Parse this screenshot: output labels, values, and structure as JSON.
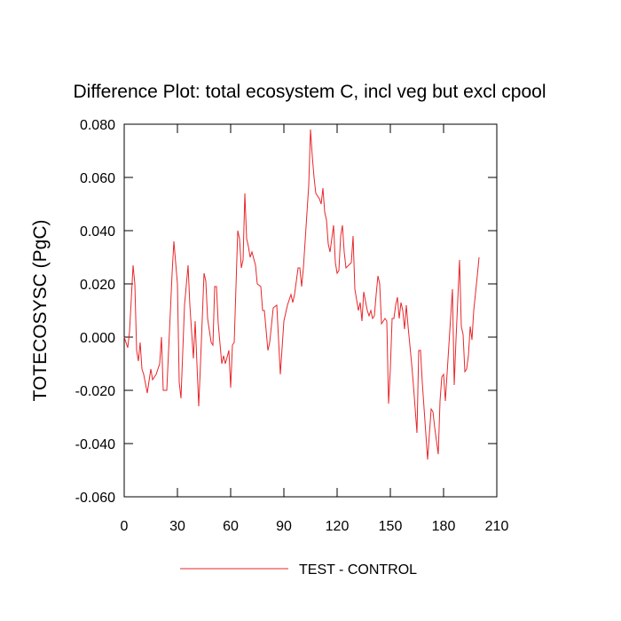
{
  "chart_data": {
    "type": "line",
    "title": "Difference Plot: total ecosystem C, incl veg but excl cpool",
    "y_label": "TOTECOSYSC  (PgC)",
    "x": [
      0,
      2,
      3,
      5,
      6,
      7,
      8,
      9,
      10,
      11,
      13,
      15,
      16,
      18,
      20,
      21,
      22,
      24,
      27,
      28,
      30,
      31,
      32,
      34,
      36,
      37,
      39,
      40,
      42,
      43,
      45,
      46,
      47,
      49,
      50,
      51,
      52,
      53,
      55,
      56,
      57,
      59,
      60,
      61,
      62,
      64,
      65,
      66,
      67,
      68,
      69,
      70,
      71,
      72,
      74,
      75,
      77,
      78,
      79,
      81,
      82,
      84,
      86,
      88,
      90,
      92,
      94,
      95,
      96,
      98,
      99,
      100,
      101,
      104,
      105,
      106,
      107,
      108,
      110,
      111,
      112,
      113,
      114,
      115,
      116,
      118,
      119,
      120,
      121,
      122,
      123,
      124,
      125,
      128,
      129,
      130,
      131,
      132,
      133,
      134,
      135,
      137,
      138,
      139,
      140,
      141,
      142,
      143,
      144,
      145,
      146,
      147,
      148,
      149,
      150,
      151,
      152,
      153,
      154,
      155,
      156,
      157,
      158,
      159,
      160,
      162,
      163,
      165,
      166,
      167,
      168,
      171,
      173,
      174,
      175,
      177,
      178,
      179,
      180,
      181,
      185,
      186,
      187,
      189,
      190,
      191,
      192,
      193,
      194,
      195,
      196,
      197,
      199,
      200
    ],
    "series": [
      {
        "name": "TEST - CONTROL",
        "color": "#e8262a",
        "values": [
          0.0,
          -0.004,
          0.002,
          0.027,
          0.02,
          -0.005,
          -0.009,
          -0.002,
          -0.012,
          -0.014,
          -0.021,
          -0.012,
          -0.016,
          -0.014,
          -0.01,
          0.0,
          -0.02,
          -0.02,
          0.024,
          0.036,
          0.02,
          -0.017,
          -0.023,
          0.012,
          0.027,
          0.012,
          -0.008,
          0.006,
          -0.026,
          -0.01,
          0.024,
          0.021,
          0.007,
          -0.002,
          -0.003,
          0.019,
          0.019,
          0.005,
          -0.01,
          -0.007,
          -0.01,
          -0.005,
          -0.019,
          -0.003,
          -0.002,
          0.04,
          0.037,
          0.026,
          0.029,
          0.054,
          0.037,
          0.034,
          0.03,
          0.032,
          0.027,
          0.02,
          0.019,
          0.01,
          0.01,
          -0.005,
          -0.002,
          0.011,
          0.012,
          -0.014,
          0.006,
          0.012,
          0.016,
          0.013,
          0.016,
          0.026,
          0.026,
          0.019,
          0.026,
          0.057,
          0.078,
          0.068,
          0.06,
          0.054,
          0.052,
          0.05,
          0.056,
          0.047,
          0.044,
          0.035,
          0.032,
          0.042,
          0.028,
          0.024,
          0.025,
          0.038,
          0.042,
          0.032,
          0.026,
          0.028,
          0.038,
          0.018,
          0.014,
          0.01,
          0.013,
          0.006,
          0.017,
          0.01,
          0.008,
          0.01,
          0.007,
          0.008,
          0.016,
          0.023,
          0.02,
          0.005,
          0.006,
          0.007,
          0.006,
          -0.025,
          -0.012,
          0.007,
          0.007,
          0.012,
          0.015,
          0.007,
          0.013,
          0.01,
          0.003,
          0.012,
          0.004,
          -0.01,
          -0.018,
          -0.036,
          -0.005,
          -0.005,
          -0.017,
          -0.046,
          -0.027,
          -0.028,
          -0.034,
          -0.044,
          -0.024,
          -0.015,
          -0.014,
          -0.024,
          0.018,
          -0.018,
          -0.001,
          0.029,
          0.004,
          0.001,
          -0.013,
          -0.012,
          -0.007,
          0.004,
          -0.001,
          0.01,
          0.023,
          0.03
        ]
      }
    ],
    "xlim": [
      0,
      210
    ],
    "xticks": [
      0,
      30,
      60,
      90,
      120,
      150,
      180,
      210
    ],
    "ylim": [
      -0.06,
      0.08
    ],
    "yticks": [
      {
        "value": -0.06,
        "label": "-0.060"
      },
      {
        "value": -0.04,
        "label": "-0.040"
      },
      {
        "value": -0.02,
        "label": "-0.020"
      },
      {
        "value": 0,
        "label": "0.000"
      },
      {
        "value": 0.02,
        "label": "0.020"
      },
      {
        "value": 0.04,
        "label": "0.040"
      },
      {
        "value": 0.06,
        "label": "0.060"
      },
      {
        "value": 0.08,
        "label": "0.080"
      }
    ],
    "grid": false,
    "legend": "bottom"
  }
}
